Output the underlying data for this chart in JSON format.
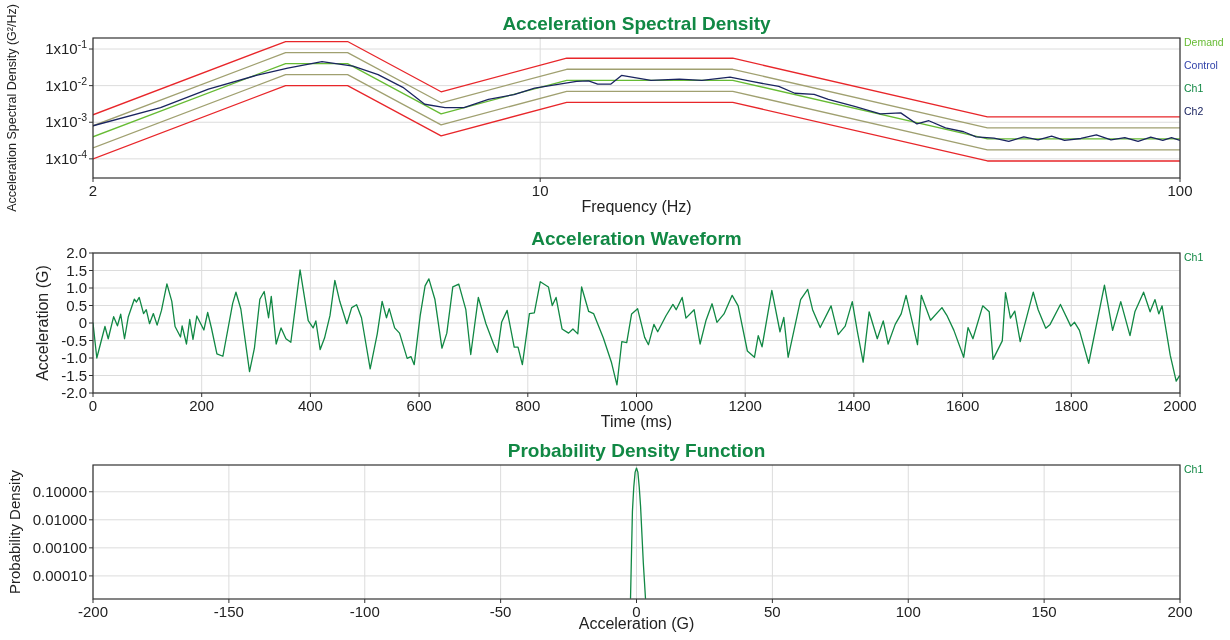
{
  "chart_data": [
    {
      "type": "line",
      "title": "Acceleration Spectral Density",
      "xlabel": "Frequency (Hz)",
      "ylabel": "Acceleration Spectral Density (G²/Hz)",
      "log": "xy",
      "grid": true,
      "legend": "top right",
      "xlim": [
        2,
        100
      ],
      "xticks": [
        2,
        10,
        100
      ],
      "ylim": [
        3e-05,
        0.2
      ],
      "yticks": [
        {
          "value": 0.1,
          "label": "1x10$^{-1}$"
        },
        {
          "value": 0.01,
          "label": "1x10$^{-2}$"
        },
        {
          "value": 0.001,
          "label": "1x10$^{-3}$"
        },
        {
          "value": 0.0001,
          "label": "1x10$^{-4}$"
        }
      ],
      "series": [
        {
          "color": "#e8262a",
          "x": [
            2,
            4,
            5,
            7,
            11,
            20,
            50,
            100
          ],
          "values": [
            0.0016,
            0.16,
            0.16,
            0.0068,
            0.056,
            0.056,
            0.0014,
            0.0014
          ]
        },
        {
          "color": "#e8262a",
          "x": [
            2,
            4,
            5,
            7,
            11,
            20,
            50,
            100
          ],
          "values": [
            0.0001,
            0.01,
            0.01,
            0.000425,
            0.0035,
            0.0035,
            8.75e-05,
            8.75e-05
          ]
        },
        {
          "color": "#a0a070",
          "x": [
            2,
            4,
            5,
            7,
            11,
            20,
            50,
            100
          ],
          "values": [
            0.0008,
            0.08,
            0.08,
            0.0034,
            0.028,
            0.028,
            0.0007,
            0.0007
          ]
        },
        {
          "color": "#a0a070",
          "x": [
            2,
            4,
            5,
            7,
            11,
            20,
            50,
            100
          ],
          "values": [
            0.0002,
            0.02,
            0.02,
            0.00085,
            0.007,
            0.007,
            0.000175,
            0.000175
          ]
        },
        {
          "name": "Demand",
          "color": "#66bb33",
          "x": [
            2,
            4,
            5,
            7,
            11,
            20,
            50,
            100
          ],
          "values": [
            0.0004,
            0.04,
            0.04,
            0.0017,
            0.014,
            0.014,
            0.00035,
            0.00035
          ]
        },
        {
          "name": "Control",
          "color": "#3344aa"
        },
        {
          "name": "Ch1",
          "color": "#118844"
        },
        {
          "name": "Ch2",
          "color": "#1a2460",
          "x": [
            2,
            2.55,
            3.03,
            3.6,
            4.03,
            4.56,
            5.1,
            5.58,
            6.1,
            6.6,
            7.1,
            7.6,
            8.3,
            9.1,
            9.8,
            11.4,
            11.9,
            12.3,
            12.9,
            13.4,
            14.9,
            16.5,
            17.9,
            19.8,
            21.4,
            23.6,
            25,
            26.8,
            28.2,
            31,
            34,
            36.6,
            38.8,
            40.5,
            43,
            45.9,
            48,
            51.2,
            54,
            57,
            60,
            63,
            66,
            70,
            74,
            78,
            82,
            86,
            90,
            94,
            97,
            100
          ],
          "values": [
            0.0008,
            0.0025,
            0.008,
            0.019,
            0.03,
            0.045,
            0.034,
            0.02,
            0.009,
            0.0031,
            0.0025,
            0.0025,
            0.0042,
            0.0057,
            0.0085,
            0.013,
            0.0135,
            0.011,
            0.011,
            0.019,
            0.014,
            0.015,
            0.014,
            0.017,
            0.013,
            0.0095,
            0.0062,
            0.0058,
            0.0042,
            0.0027,
            0.0017,
            0.0018,
            0.0009,
            0.0011,
            0.0007,
            0.00055,
            0.0004,
            0.00037,
            0.0003,
            0.0004,
            0.00033,
            0.00042,
            0.00032,
            0.00036,
            0.00045,
            0.00033,
            0.00038,
            0.0003,
            0.00039,
            0.00032,
            0.00038,
            0.00032
          ]
        }
      ]
    },
    {
      "type": "line",
      "title": "Acceleration Waveform",
      "xlabel": "Time (ms)",
      "ylabel": "Acceleration (G)",
      "grid": true,
      "legend": "top right",
      "xlim": [
        0,
        2000
      ],
      "xticks": [
        0,
        200,
        400,
        600,
        800,
        1000,
        1200,
        1400,
        1600,
        1800,
        2000
      ],
      "ylim": [
        -2,
        2
      ],
      "yticks": [
        {
          "value": 2,
          "label": "2.0"
        },
        1.5,
        {
          "value": 1,
          "label": "1.0"
        },
        0.5,
        0,
        -0.5,
        {
          "value": -1,
          "label": "-1.0"
        },
        -1.5,
        {
          "value": -2,
          "label": "-2.0"
        }
      ],
      "series": [
        {
          "name": "Ch1",
          "color": "#118844",
          "x": [
            0,
            7,
            22,
            28,
            38,
            45,
            51,
            58,
            65,
            76,
            80,
            85,
            93,
            98,
            104,
            111,
            118,
            126,
            136,
            145,
            151,
            161,
            164,
            172,
            178,
            184,
            191,
            204,
            211,
            218,
            228,
            239,
            257,
            263,
            272,
            288,
            297,
            307,
            315,
            323,
            328,
            337,
            346,
            355,
            364,
            381,
            396,
            405,
            410,
            418,
            426,
            436,
            445,
            454,
            467,
            476,
            485,
            494,
            510,
            523,
            532,
            540,
            545,
            555,
            564,
            578,
            585,
            591,
            602,
            611,
            618,
            629,
            642,
            651,
            662,
            673,
            686,
            695,
            709,
            723,
            737,
            744,
            752,
            762,
            775,
            782,
            790,
            803,
            812,
            823,
            838,
            845,
            852,
            863,
            875,
            883,
            892,
            899,
            912,
            921,
            939,
            954,
            964,
            973,
            982,
            991,
            1002,
            1015,
            1022,
            1032,
            1039,
            1054,
            1067,
            1073,
            1084,
            1091,
            1106,
            1117,
            1128,
            1139,
            1148,
            1161,
            1176,
            1187,
            1204,
            1217,
            1224,
            1231,
            1249,
            1264,
            1271,
            1279,
            1302,
            1315,
            1324,
            1338,
            1358,
            1371,
            1384,
            1397,
            1406,
            1417,
            1428,
            1443,
            1454,
            1463,
            1476,
            1487,
            1496,
            1517,
            1524,
            1541,
            1562,
            1571,
            1584,
            1602,
            1610,
            1619,
            1637,
            1649,
            1656,
            1673,
            1679,
            1688,
            1696,
            1706,
            1730,
            1739,
            1753,
            1761,
            1780,
            1799,
            1806,
            1815,
            1832,
            1861,
            1876,
            1891,
            1908,
            1917,
            1933,
            1945,
            1954,
            1961,
            1967,
            1982,
            1993,
            1999
          ],
          "values": [
            0,
            -1.0,
            -0.1,
            -0.45,
            0.18,
            -0.08,
            0.25,
            -0.45,
            0.18,
            0.68,
            0.6,
            0.73,
            0.27,
            0.38,
            -0.02,
            0.27,
            -0.06,
            0.36,
            1.12,
            0.62,
            -0.1,
            -0.4,
            -0.08,
            -0.6,
            0.1,
            -0.47,
            0.2,
            -0.2,
            0.3,
            -0.15,
            -0.88,
            -0.95,
            0.56,
            0.88,
            0.4,
            -1.39,
            -0.72,
            0.68,
            0.9,
            0.15,
            0.76,
            -0.6,
            -0.14,
            -0.45,
            -0.55,
            1.52,
            0.07,
            -0.14,
            0.06,
            -0.76,
            -0.43,
            0.21,
            1.22,
            0.62,
            -0.02,
            0.44,
            0.52,
            0.15,
            -1.31,
            -0.31,
            0.62,
            0.15,
            0.41,
            -0.14,
            -0.29,
            -1.01,
            -0.96,
            -1.19,
            0.21,
            1.06,
            1.26,
            0.68,
            -0.72,
            -0.29,
            1.03,
            1.11,
            0.38,
            -0.9,
            0.73,
            -0.02,
            -0.6,
            -0.84,
            0.03,
            0.36,
            -0.69,
            -0.69,
            -1.19,
            0.27,
            0.29,
            1.18,
            1.03,
            0.5,
            0.73,
            -0.17,
            -0.29,
            -0.17,
            -0.31,
            1.03,
            0.33,
            0.27,
            -0.43,
            -1.13,
            -1.77,
            -0.53,
            -0.56,
            0.26,
            0.41,
            -0.41,
            -0.62,
            -0.04,
            -0.25,
            0.2,
            0.53,
            0.38,
            0.73,
            0.14,
            0.38,
            -0.6,
            0.08,
            0.55,
            0.02,
            0.26,
            0.79,
            0.49,
            -0.8,
            -0.98,
            -0.36,
            -0.68,
            0.93,
            -0.25,
            0.16,
            -0.98,
            0.67,
            0.96,
            0.38,
            -0.13,
            0.49,
            -0.33,
            -0.09,
            0.61,
            -0.21,
            -1.12,
            0.32,
            -0.45,
            0.06,
            -0.6,
            -0.04,
            0.26,
            0.79,
            -0.62,
            0.79,
            0.08,
            0.44,
            0.22,
            -0.21,
            -0.98,
            -0.13,
            -0.45,
            0.49,
            0.32,
            -1.04,
            -0.51,
            0.87,
            0.14,
            0.34,
            -0.53,
            0.88,
            0.38,
            -0.15,
            -0.04,
            0.53,
            -0.09,
            0.02,
            -0.21,
            -1.15,
            1.08,
            -0.21,
            0.61,
            -0.36,
            0.32,
            0.88,
            0.32,
            0.67,
            0.26,
            0.49,
            -0.92,
            -1.66,
            -1.51
          ]
        }
      ]
    },
    {
      "type": "line",
      "title": "Probability Density Function",
      "xlabel": "Acceleration (G)",
      "ylabel": "Probability Density",
      "log": "y",
      "grid": true,
      "legend": "top right",
      "xlim": [
        -200,
        200
      ],
      "xticks": [
        -200,
        -150,
        -100,
        -50,
        0,
        50,
        100,
        150,
        200
      ],
      "ylim": [
        1.5e-05,
        0.9
      ],
      "yticks": [
        {
          "value": 0.1,
          "label": "0.10000"
        },
        {
          "value": 0.01,
          "label": "0.01000"
        },
        {
          "value": 0.001,
          "label": "0.00100"
        },
        {
          "value": 0.0001,
          "label": "0.00010"
        }
      ],
      "series": [
        {
          "name": "Ch1",
          "color": "#118844",
          "x": [
            -2.2,
            -1.5,
            -1,
            -0.5,
            0,
            0.5,
            1,
            1.5,
            2,
            2.5,
            3.3
          ],
          "values": [
            1.6e-05,
            0.02,
            0.15,
            0.5,
            0.7,
            0.5,
            0.15,
            0.03,
            0.003,
            0.0003,
            1.6e-05
          ]
        }
      ]
    }
  ]
}
